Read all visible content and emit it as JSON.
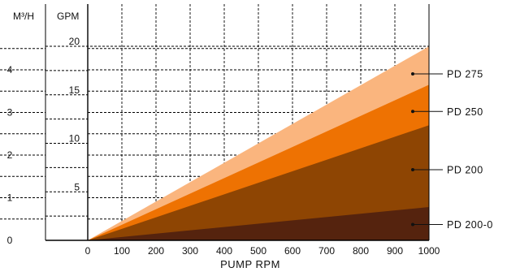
{
  "chart_data": {
    "type": "area",
    "xlabel": "PUMP RPM",
    "x_ticks": [
      "0",
      "100",
      "200",
      "300",
      "400",
      "500",
      "600",
      "700",
      "800",
      "900",
      "1000"
    ],
    "xlim": [
      0,
      1000
    ],
    "y_axes": [
      {
        "unit": "M³/H",
        "ylim": [
          0,
          4.55
        ],
        "ticks": [
          "0",
          "1",
          "2",
          "3",
          "4"
        ]
      },
      {
        "unit": "GPM",
        "ylim": [
          0,
          20
        ],
        "ticks": [
          "5",
          "10",
          "15",
          "20"
        ]
      }
    ],
    "grid": true,
    "stacked": false,
    "series": [
      {
        "name": "PD 275",
        "color": "#FAB57E",
        "x": [
          0,
          1000
        ],
        "y_m3h": [
          0,
          4.55
        ]
      },
      {
        "name": "PD 250",
        "color": "#EE7202",
        "x": [
          0,
          1000
        ],
        "y_m3h": [
          0,
          3.65
        ]
      },
      {
        "name": "PD 200",
        "color": "#8E4503",
        "x": [
          0,
          1000
        ],
        "y_m3h": [
          0,
          2.7
        ]
      },
      {
        "name": "PD 200-0",
        "color": "#55230E",
        "x": [
          0,
          1000
        ],
        "y_m3h": [
          0,
          0.78
        ]
      }
    ]
  }
}
